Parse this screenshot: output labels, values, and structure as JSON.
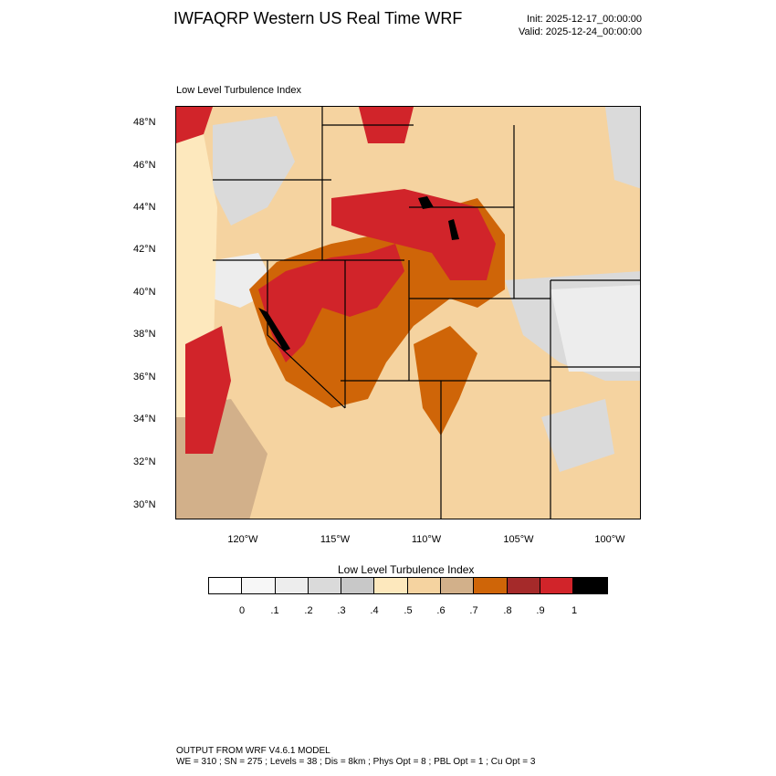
{
  "header": {
    "title": "IWFAQRP Western US Real Time WRF",
    "init": "Init: 2025-12-17_00:00:00",
    "valid": "Valid: 2025-12-24_00:00:00"
  },
  "panel_label": "Low Level Turbulence Index",
  "map": {
    "lat_labels": [
      "48°N",
      "46°N",
      "44°N",
      "42°N",
      "40°N",
      "38°N",
      "36°N",
      "34°N",
      "32°N",
      "30°N"
    ],
    "lon_labels": [
      "120°W",
      "115°W",
      "110°W",
      "105°W",
      "100°W"
    ]
  },
  "colorbar": {
    "title": "Low Level Turbulence Index",
    "colors": [
      "#ffffff",
      "#f7f7f7",
      "#ededed",
      "#dadada",
      "#c8c8c8",
      "#fde8bd",
      "#f5d3a0",
      "#d2b08a",
      "#cf6508",
      "#a52a2a",
      "#d1242a",
      "#000000"
    ],
    "labels": [
      "0",
      ".1",
      ".2",
      ".3",
      ".4",
      ".5",
      ".6",
      ".7",
      ".8",
      ".9",
      "1"
    ]
  },
  "footer": {
    "line1": "OUTPUT FROM WRF V4.6.1 MODEL",
    "line2": "WE = 310 ; SN = 275 ; Levels = 38 ; Dis = 8km ; Phys Opt = 8 ; PBL Opt = 1 ; Cu Opt = 3"
  }
}
